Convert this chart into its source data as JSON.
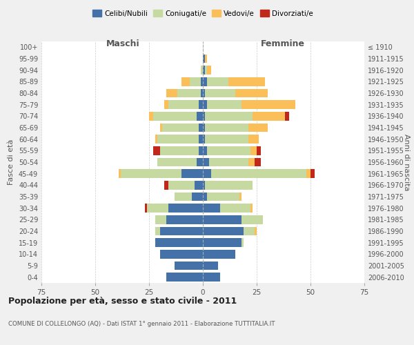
{
  "age_groups": [
    "0-4",
    "5-9",
    "10-14",
    "15-19",
    "20-24",
    "25-29",
    "30-34",
    "35-39",
    "40-44",
    "45-49",
    "50-54",
    "55-59",
    "60-64",
    "65-69",
    "70-74",
    "75-79",
    "80-84",
    "85-89",
    "90-94",
    "95-99",
    "100+"
  ],
  "birth_years": [
    "2006-2010",
    "2001-2005",
    "1996-2000",
    "1991-1995",
    "1986-1990",
    "1981-1985",
    "1976-1980",
    "1971-1975",
    "1966-1970",
    "1961-1965",
    "1956-1960",
    "1951-1955",
    "1946-1950",
    "1941-1945",
    "1936-1940",
    "1931-1935",
    "1926-1930",
    "1921-1925",
    "1916-1920",
    "1911-1915",
    "≤ 1910"
  ],
  "males": {
    "celibi": [
      17,
      13,
      20,
      22,
      20,
      17,
      16,
      5,
      4,
      10,
      3,
      2,
      2,
      2,
      3,
      2,
      1,
      1,
      0,
      0,
      0
    ],
    "coniugati": [
      0,
      0,
      0,
      0,
      2,
      5,
      10,
      8,
      12,
      28,
      18,
      18,
      19,
      17,
      20,
      14,
      11,
      5,
      1,
      0,
      0
    ],
    "vedovi": [
      0,
      0,
      0,
      0,
      0,
      0,
      0,
      0,
      0,
      1,
      0,
      0,
      1,
      1,
      2,
      2,
      5,
      4,
      0,
      0,
      0
    ],
    "divorziati": [
      0,
      0,
      0,
      0,
      0,
      0,
      1,
      0,
      2,
      0,
      0,
      3,
      0,
      0,
      0,
      0,
      0,
      0,
      0,
      0,
      0
    ]
  },
  "females": {
    "nubili": [
      8,
      7,
      15,
      18,
      19,
      18,
      8,
      2,
      1,
      4,
      3,
      2,
      1,
      1,
      1,
      2,
      1,
      2,
      1,
      1,
      0
    ],
    "coniugate": [
      0,
      0,
      0,
      1,
      5,
      10,
      14,
      15,
      22,
      44,
      18,
      20,
      20,
      20,
      22,
      16,
      14,
      10,
      1,
      0,
      0
    ],
    "vedove": [
      0,
      0,
      0,
      0,
      1,
      0,
      1,
      1,
      0,
      2,
      3,
      3,
      5,
      9,
      15,
      25,
      15,
      17,
      2,
      1,
      0
    ],
    "divorziate": [
      0,
      0,
      0,
      0,
      0,
      0,
      0,
      0,
      0,
      2,
      3,
      2,
      0,
      0,
      2,
      0,
      0,
      0,
      0,
      0,
      0
    ]
  },
  "colors": {
    "celibi": "#4472a8",
    "coniugati": "#c5d9a0",
    "vedovi": "#fbbf5a",
    "divorziati": "#c0281c"
  },
  "title": "Popolazione per età, sesso e stato civile - 2011",
  "subtitle": "COMUNE DI COLLELONGO (AQ) - Dati ISTAT 1° gennaio 2011 - Elaborazione TUTTITALIA.IT",
  "xlabel_left": "Maschi",
  "xlabel_right": "Femmine",
  "ylabel_left": "Fasce di età",
  "ylabel_right": "Anni di nascita",
  "xlim": 75,
  "legend_labels": [
    "Celibi/Nubili",
    "Coniugati/e",
    "Vedovi/e",
    "Divorziati/e"
  ],
  "fig_bg_color": "#f0f0f0",
  "plot_bg_color": "#ffffff",
  "grid_color": "#cccccc"
}
